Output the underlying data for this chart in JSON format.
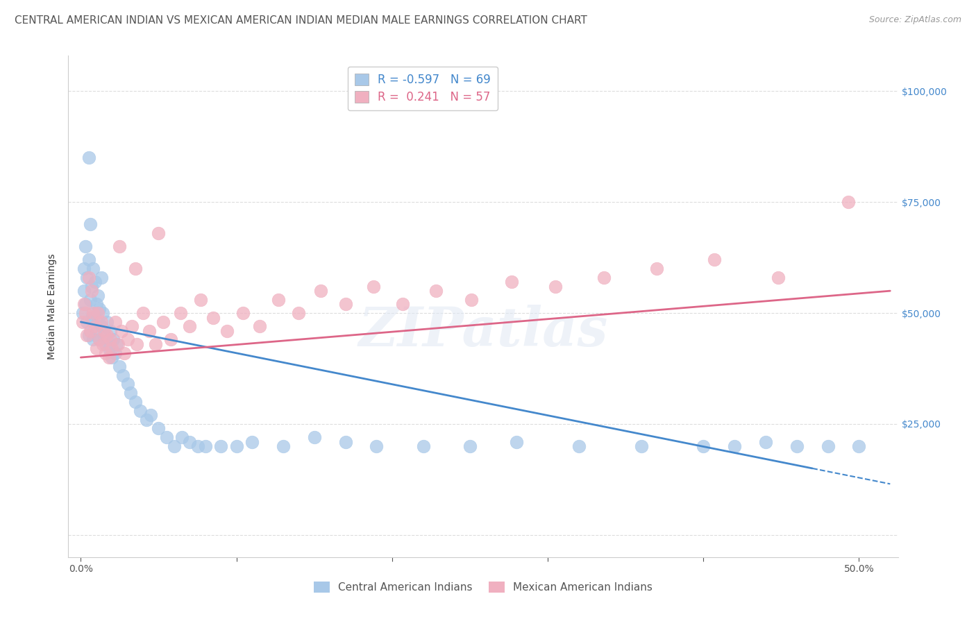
{
  "title": "CENTRAL AMERICAN INDIAN VS MEXICAN AMERICAN INDIAN MEDIAN MALE EARNINGS CORRELATION CHART",
  "source": "Source: ZipAtlas.com",
  "ylabel": "Median Male Earnings",
  "background_color": "#ffffff",
  "watermark": "ZIPatlas",
  "blue_color": "#a8c8e8",
  "pink_color": "#f0b0c0",
  "blue_line_color": "#4488cc",
  "pink_line_color": "#dd6688",
  "blue_R": -0.597,
  "blue_N": 69,
  "pink_R": 0.241,
  "pink_N": 57,
  "legend_label_blue": "Central American Indians",
  "legend_label_pink": "Mexican American Indians",
  "blue_scatter_x": [
    0.001,
    0.002,
    0.002,
    0.003,
    0.003,
    0.004,
    0.004,
    0.005,
    0.005,
    0.006,
    0.006,
    0.007,
    0.007,
    0.008,
    0.008,
    0.009,
    0.009,
    0.01,
    0.01,
    0.011,
    0.011,
    0.012,
    0.012,
    0.013,
    0.013,
    0.014,
    0.015,
    0.016,
    0.017,
    0.018,
    0.019,
    0.02,
    0.021,
    0.022,
    0.023,
    0.025,
    0.027,
    0.03,
    0.032,
    0.035,
    0.038,
    0.042,
    0.045,
    0.05,
    0.055,
    0.06,
    0.065,
    0.07,
    0.075,
    0.08,
    0.09,
    0.1,
    0.11,
    0.13,
    0.15,
    0.17,
    0.19,
    0.22,
    0.25,
    0.28,
    0.32,
    0.36,
    0.4,
    0.42,
    0.44,
    0.46,
    0.48,
    0.5,
    0.005
  ],
  "blue_scatter_y": [
    50000,
    55000,
    60000,
    52000,
    65000,
    58000,
    48000,
    62000,
    45000,
    70000,
    53000,
    56000,
    49000,
    60000,
    44000,
    57000,
    50000,
    52000,
    46000,
    54000,
    48000,
    51000,
    44000,
    58000,
    47000,
    50000,
    45000,
    43000,
    48000,
    42000,
    46000,
    40000,
    44000,
    41000,
    43000,
    38000,
    36000,
    34000,
    32000,
    30000,
    28000,
    26000,
    27000,
    24000,
    22000,
    20000,
    22000,
    21000,
    20000,
    20000,
    20000,
    20000,
    21000,
    20000,
    22000,
    21000,
    20000,
    20000,
    20000,
    21000,
    20000,
    20000,
    20000,
    20000,
    21000,
    20000,
    20000,
    20000,
    85000
  ],
  "pink_scatter_x": [
    0.001,
    0.002,
    0.003,
    0.004,
    0.005,
    0.006,
    0.007,
    0.008,
    0.009,
    0.01,
    0.011,
    0.012,
    0.013,
    0.014,
    0.015,
    0.016,
    0.017,
    0.018,
    0.019,
    0.02,
    0.022,
    0.024,
    0.026,
    0.028,
    0.03,
    0.033,
    0.036,
    0.04,
    0.044,
    0.048,
    0.053,
    0.058,
    0.064,
    0.07,
    0.077,
    0.085,
    0.094,
    0.104,
    0.115,
    0.127,
    0.14,
    0.154,
    0.17,
    0.188,
    0.207,
    0.228,
    0.251,
    0.277,
    0.305,
    0.336,
    0.37,
    0.407,
    0.448,
    0.493,
    0.025,
    0.035,
    0.05
  ],
  "pink_scatter_y": [
    48000,
    52000,
    50000,
    45000,
    58000,
    46000,
    55000,
    50000,
    47000,
    42000,
    50000,
    44000,
    48000,
    43000,
    46000,
    41000,
    45000,
    40000,
    44000,
    42000,
    48000,
    43000,
    46000,
    41000,
    44000,
    47000,
    43000,
    50000,
    46000,
    43000,
    48000,
    44000,
    50000,
    47000,
    53000,
    49000,
    46000,
    50000,
    47000,
    53000,
    50000,
    55000,
    52000,
    56000,
    52000,
    55000,
    53000,
    57000,
    56000,
    58000,
    60000,
    62000,
    58000,
    75000,
    65000,
    60000,
    68000
  ],
  "title_fontsize": 11,
  "axis_label_fontsize": 10,
  "tick_fontsize": 10,
  "legend_fontsize": 12
}
